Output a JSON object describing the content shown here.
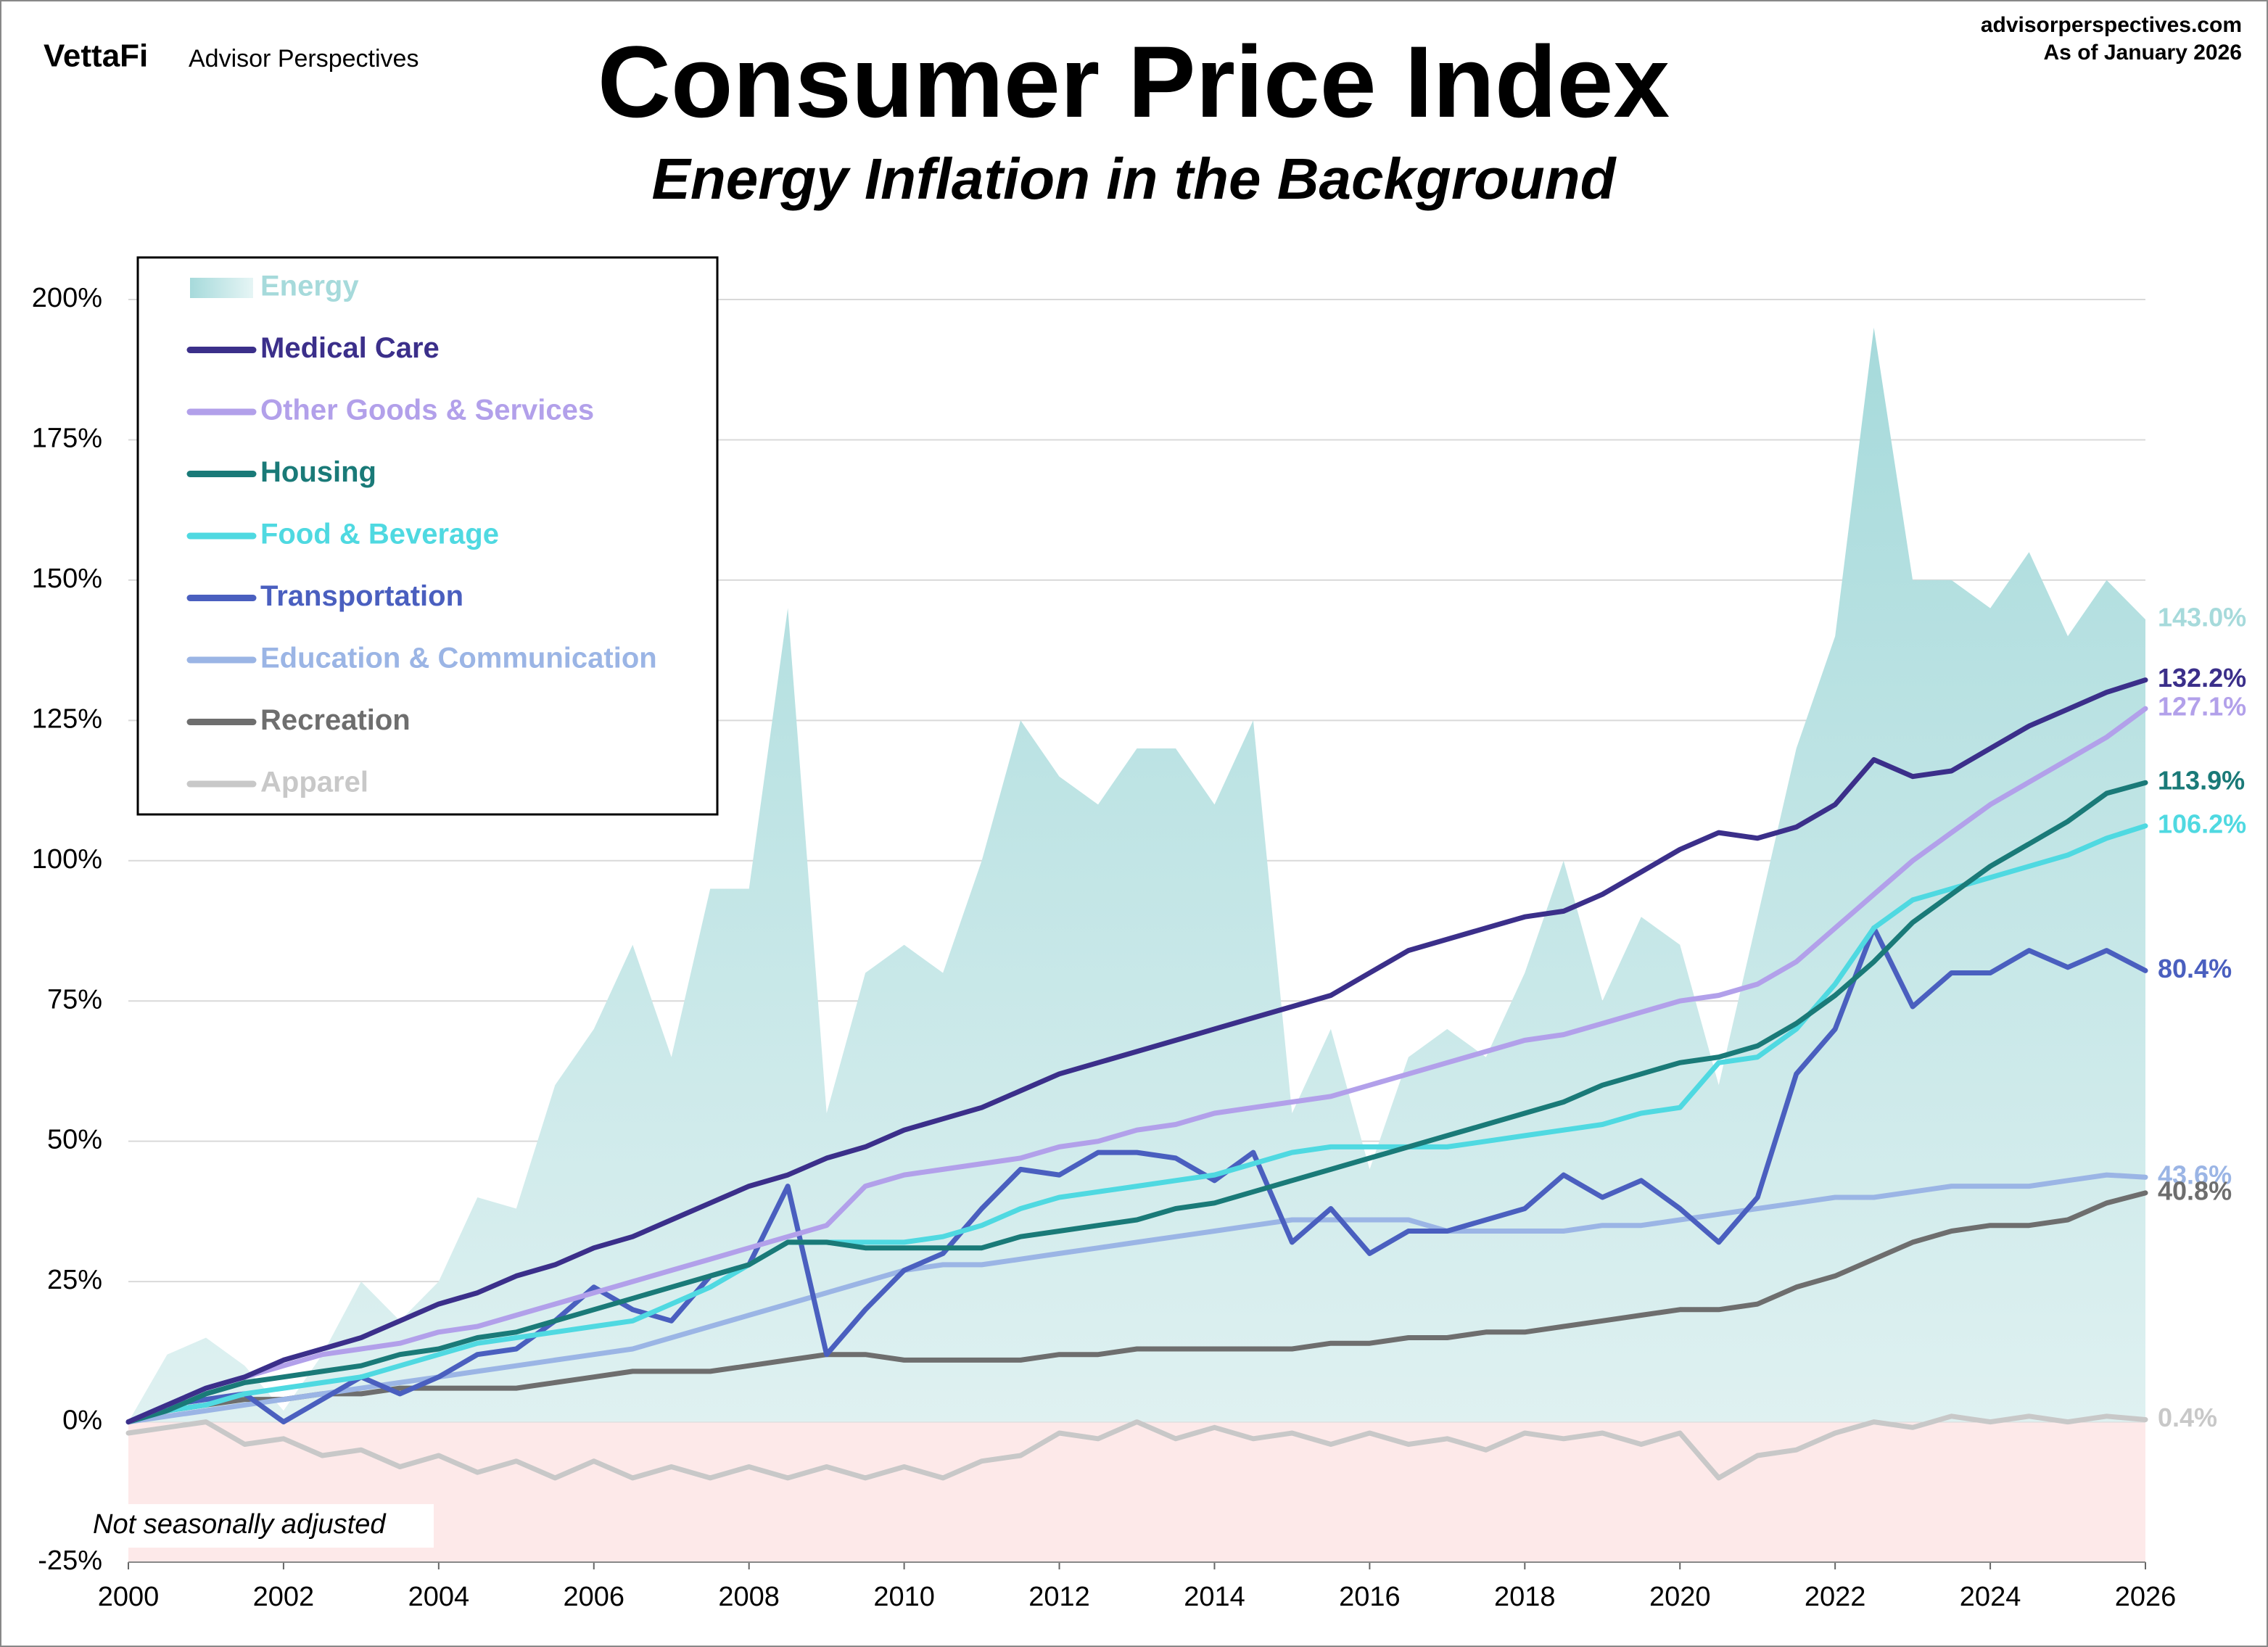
{
  "brand": "VettaFi",
  "brand_sub": "Advisor Perspectives",
  "source": "advisorperspectives.com",
  "as_of": "As of January 2026",
  "chart_data": {
    "type": "line",
    "title": "Consumer Price Index",
    "subtitle": "Energy Inflation in the Background",
    "note": "Not seasonally adjusted",
    "x": [
      2000,
      2000.5,
      2001,
      2001.5,
      2002,
      2002.5,
      2003,
      2003.5,
      2004,
      2004.5,
      2005,
      2005.5,
      2006,
      2006.5,
      2007,
      2007.5,
      2008,
      2008.5,
      2009,
      2009.5,
      2010,
      2010.5,
      2011,
      2011.5,
      2012,
      2012.5,
      2013,
      2013.5,
      2014,
      2014.5,
      2015,
      2015.5,
      2016,
      2016.5,
      2017,
      2017.5,
      2018,
      2018.5,
      2019,
      2019.5,
      2020,
      2020.5,
      2021,
      2021.5,
      2022,
      2022.5,
      2023,
      2023.5,
      2024,
      2024.5,
      2025,
      2025.5,
      2026
    ],
    "xlim": [
      2000,
      2026
    ],
    "xticks": [
      2000,
      2002,
      2004,
      2006,
      2008,
      2010,
      2012,
      2014,
      2016,
      2018,
      2020,
      2022,
      2024,
      2026
    ],
    "ylim": [
      -25,
      200
    ],
    "yticks": [
      {
        "value": -25,
        "label": "-25%"
      },
      {
        "value": 0,
        "label": "0%"
      },
      {
        "value": 25,
        "label": "25%"
      },
      {
        "value": 50,
        "label": "50%"
      },
      {
        "value": 75,
        "label": "75%"
      },
      {
        "value": 100,
        "label": "100%"
      },
      {
        "value": 125,
        "label": "125%"
      },
      {
        "value": 150,
        "label": "150%"
      },
      {
        "value": 175,
        "label": "175%"
      },
      {
        "value": 200,
        "label": "200%"
      }
    ],
    "grid": true,
    "negative_shade": "#fde9e9",
    "series": [
      {
        "name": "Energy",
        "kind": "area",
        "color": "#a6dadb",
        "end_label": "143.0%",
        "values": [
          0,
          12,
          15,
          10,
          2,
          12,
          25,
          18,
          25,
          40,
          38,
          60,
          70,
          85,
          65,
          95,
          95,
          145,
          55,
          80,
          85,
          80,
          100,
          125,
          115,
          110,
          120,
          120,
          110,
          125,
          55,
          70,
          45,
          65,
          70,
          65,
          80,
          100,
          75,
          90,
          85,
          60,
          90,
          120,
          140,
          195,
          150,
          150,
          145,
          155,
          140,
          150,
          143.0
        ]
      },
      {
        "name": "Medical Care",
        "kind": "line",
        "color": "#3b2f8a",
        "end_label": "132.2%",
        "values": [
          0,
          3,
          6,
          8,
          11,
          13,
          15,
          18,
          21,
          23,
          26,
          28,
          31,
          33,
          36,
          39,
          42,
          44,
          47,
          49,
          52,
          54,
          56,
          59,
          62,
          64,
          66,
          68,
          70,
          72,
          74,
          76,
          80,
          84,
          86,
          88,
          90,
          91,
          94,
          98,
          102,
          105,
          104,
          106,
          110,
          118,
          115,
          116,
          120,
          124,
          127,
          130,
          132.2
        ]
      },
      {
        "name": "Other Goods & Services",
        "kind": "line",
        "color": "#b2a0ea",
        "end_label": "127.1%",
        "values": [
          0,
          3,
          6,
          8,
          10,
          12,
          13,
          14,
          16,
          17,
          19,
          21,
          23,
          25,
          27,
          29,
          31,
          33,
          35,
          42,
          44,
          45,
          46,
          47,
          49,
          50,
          52,
          53,
          55,
          56,
          57,
          58,
          60,
          62,
          64,
          66,
          68,
          69,
          71,
          73,
          75,
          76,
          78,
          82,
          88,
          94,
          100,
          105,
          110,
          114,
          118,
          122,
          127.1
        ]
      },
      {
        "name": "Housing",
        "kind": "line",
        "color": "#1a7a78",
        "end_label": "113.9%",
        "values": [
          0,
          2,
          5,
          7,
          8,
          9,
          10,
          12,
          13,
          15,
          16,
          18,
          20,
          22,
          24,
          26,
          28,
          32,
          32,
          31,
          31,
          31,
          31,
          33,
          34,
          35,
          36,
          38,
          39,
          41,
          43,
          45,
          47,
          49,
          51,
          53,
          55,
          57,
          60,
          62,
          64,
          65,
          67,
          71,
          76,
          82,
          89,
          94,
          99,
          103,
          107,
          112,
          113.9
        ]
      },
      {
        "name": "Food & Beverage",
        "kind": "line",
        "color": "#4fd9e1",
        "end_label": "106.2%",
        "values": [
          0,
          2,
          3,
          5,
          6,
          7,
          8,
          10,
          12,
          14,
          15,
          16,
          17,
          18,
          21,
          24,
          28,
          32,
          32,
          32,
          32,
          33,
          35,
          38,
          40,
          41,
          42,
          43,
          44,
          46,
          48,
          49,
          49,
          49,
          49,
          50,
          51,
          52,
          53,
          55,
          56,
          64,
          65,
          70,
          78,
          88,
          93,
          95,
          97,
          99,
          101,
          104,
          106.2
        ]
      },
      {
        "name": "Transportation",
        "kind": "line",
        "color": "#4a5fbf",
        "end_label": "80.4%",
        "values": [
          0,
          3,
          4,
          5,
          0,
          4,
          8,
          5,
          8,
          12,
          13,
          18,
          24,
          20,
          18,
          26,
          28,
          42,
          12,
          20,
          27,
          30,
          38,
          45,
          44,
          48,
          48,
          47,
          43,
          48,
          32,
          38,
          30,
          34,
          34,
          36,
          38,
          44,
          40,
          43,
          38,
          32,
          40,
          62,
          70,
          88,
          74,
          80,
          80,
          84,
          81,
          84,
          80.4
        ]
      },
      {
        "name": "Education & Communication",
        "kind": "line",
        "color": "#9bb5e5",
        "end_label": "43.6%",
        "values": [
          0,
          1,
          2,
          3,
          4,
          5,
          6,
          7,
          8,
          9,
          10,
          11,
          12,
          13,
          15,
          17,
          19,
          21,
          23,
          25,
          27,
          28,
          28,
          29,
          30,
          31,
          32,
          33,
          34,
          35,
          36,
          36,
          36,
          36,
          34,
          34,
          34,
          34,
          35,
          35,
          36,
          37,
          38,
          39,
          40,
          40,
          41,
          42,
          42,
          42,
          43,
          44,
          43.6
        ]
      },
      {
        "name": "Recreation",
        "kind": "line",
        "color": "#6e6e6e",
        "end_label": "40.8%",
        "values": [
          0,
          2,
          3,
          4,
          4,
          5,
          5,
          6,
          6,
          6,
          6,
          7,
          8,
          9,
          9,
          9,
          10,
          11,
          12,
          12,
          11,
          11,
          11,
          11,
          12,
          12,
          13,
          13,
          13,
          13,
          13,
          14,
          14,
          15,
          15,
          16,
          16,
          17,
          18,
          19,
          20,
          20,
          21,
          24,
          26,
          29,
          32,
          34,
          35,
          35,
          36,
          39,
          40.8
        ]
      },
      {
        "name": "Apparel",
        "kind": "line",
        "color": "#c8c8c8",
        "end_label": "0.4%",
        "values": [
          -2,
          -1,
          0,
          -4,
          -3,
          -6,
          -5,
          -8,
          -6,
          -9,
          -7,
          -10,
          -7,
          -10,
          -8,
          -10,
          -8,
          -10,
          -8,
          -10,
          -8,
          -10,
          -7,
          -6,
          -2,
          -3,
          0,
          -3,
          -1,
          -3,
          -2,
          -4,
          -2,
          -4,
          -3,
          -5,
          -2,
          -3,
          -2,
          -4,
          -2,
          -10,
          -6,
          -5,
          -2,
          0,
          -1,
          1,
          0,
          1,
          0,
          1,
          0.4
        ]
      }
    ]
  }
}
